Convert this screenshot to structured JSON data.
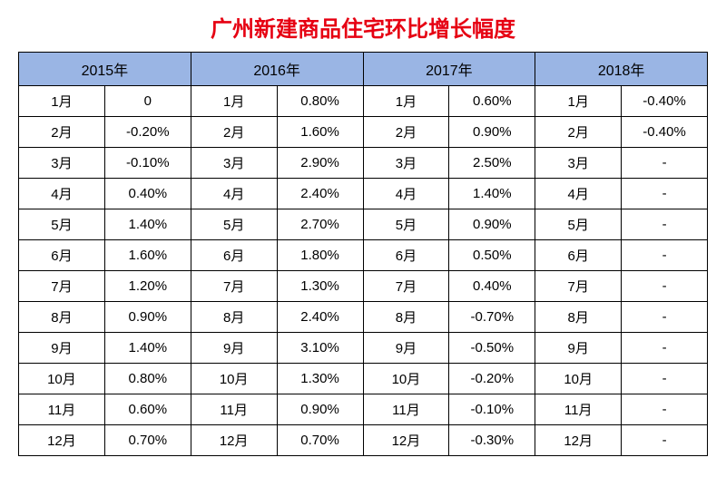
{
  "title": "广州新建商品住宅环比增长幅度",
  "title_color": "#e60012",
  "header_bg": "#9ab5e4",
  "border_color": "#000000",
  "background_color": "#ffffff",
  "years": [
    "2015年",
    "2016年",
    "2017年",
    "2018年"
  ],
  "months": [
    "1月",
    "2月",
    "3月",
    "4月",
    "5月",
    "6月",
    "7月",
    "8月",
    "9月",
    "10月",
    "11月",
    "12月"
  ],
  "data": {
    "2015": [
      "0",
      "-0.20%",
      "-0.10%",
      "0.40%",
      "1.40%",
      "1.60%",
      "1.20%",
      "0.90%",
      "1.40%",
      "0.80%",
      "0.60%",
      "0.70%"
    ],
    "2016": [
      "0.80%",
      "1.60%",
      "2.90%",
      "2.40%",
      "2.70%",
      "1.80%",
      "1.30%",
      "2.40%",
      "3.10%",
      "1.30%",
      "0.90%",
      "0.70%"
    ],
    "2017": [
      "0.60%",
      "0.90%",
      "2.50%",
      "1.40%",
      "0.90%",
      "0.50%",
      "0.40%",
      "-0.70%",
      "-0.50%",
      "-0.20%",
      "-0.10%",
      "-0.30%"
    ],
    "2018": [
      "-0.40%",
      "-0.40%",
      "-",
      "-",
      "-",
      "-",
      "-",
      "-",
      "-",
      "-",
      "-",
      "-"
    ]
  }
}
